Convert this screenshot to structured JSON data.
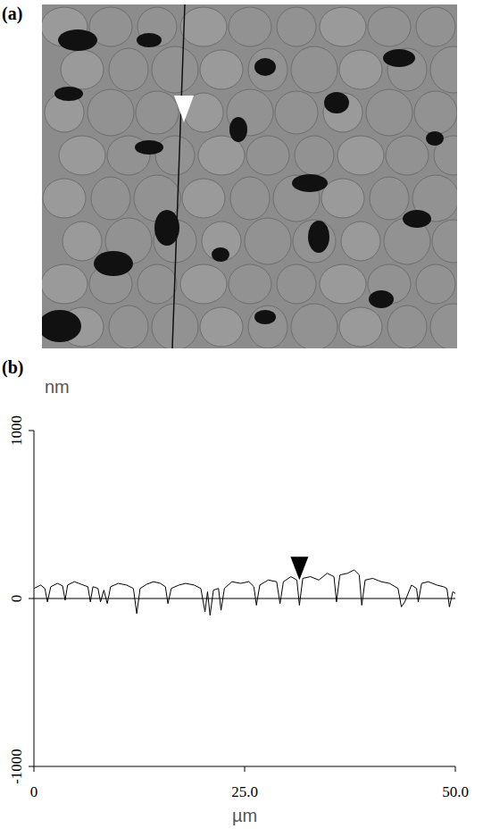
{
  "image_panel": {
    "label": "(a)"
  },
  "chart_data": {
    "type": "line",
    "panel_label": "(b)",
    "y_label": "nm",
    "x_label": "µm",
    "color": "#000000",
    "grid": false,
    "xlim": [
      0,
      50
    ],
    "ylim": [
      -1000,
      1000
    ],
    "xticks": [
      0,
      {
        "value": 25,
        "label": "25.0"
      },
      {
        "value": 50,
        "label": "50.0"
      }
    ],
    "yticks": [
      -1000,
      0,
      1000
    ],
    "cursor": {
      "x": 31.5,
      "y": 110
    },
    "x": [
      0,
      0.8,
      1.3,
      1.6,
      2.0,
      2.8,
      3.4,
      3.7,
      4.0,
      4.8,
      5.6,
      6.4,
      6.7,
      7.0,
      7.6,
      7.9,
      8.3,
      8.7,
      9.1,
      10.0,
      11.0,
      11.8,
      12.2,
      12.6,
      13.4,
      14.2,
      15.0,
      15.6,
      15.9,
      16.3,
      17.2,
      18.0,
      19.0,
      19.8,
      20.3,
      20.6,
      20.9,
      21.3,
      21.9,
      22.2,
      22.6,
      23.5,
      24.5,
      25.5,
      26.1,
      26.4,
      26.8,
      27.8,
      28.8,
      29.2,
      29.6,
      30.5,
      31.2,
      31.5,
      31.9,
      32.8,
      33.8,
      34.8,
      35.6,
      35.9,
      36.3,
      37.2,
      38.0,
      38.6,
      38.9,
      39.3,
      40.2,
      41.2,
      42.2,
      43.2,
      43.6,
      44.0,
      44.8,
      45.4,
      45.6,
      46.0,
      46.8,
      47.8,
      48.6,
      49.0,
      49.3,
      49.7,
      50.0
    ],
    "values": [
      60,
      80,
      60,
      -20,
      70,
      90,
      75,
      -10,
      80,
      100,
      85,
      70,
      -20,
      70,
      60,
      -20,
      50,
      -30,
      70,
      90,
      80,
      60,
      -90,
      60,
      85,
      100,
      90,
      70,
      -30,
      60,
      80,
      90,
      80,
      60,
      -80,
      40,
      -100,
      50,
      60,
      -70,
      60,
      100,
      90,
      100,
      70,
      -40,
      80,
      110,
      100,
      -30,
      100,
      130,
      110,
      -40,
      120,
      130,
      110,
      150,
      130,
      -20,
      140,
      150,
      170,
      140,
      -40,
      110,
      120,
      100,
      90,
      60,
      -50,
      -20,
      80,
      60,
      -20,
      90,
      100,
      80,
      70,
      60,
      -50,
      40,
      30
    ]
  }
}
